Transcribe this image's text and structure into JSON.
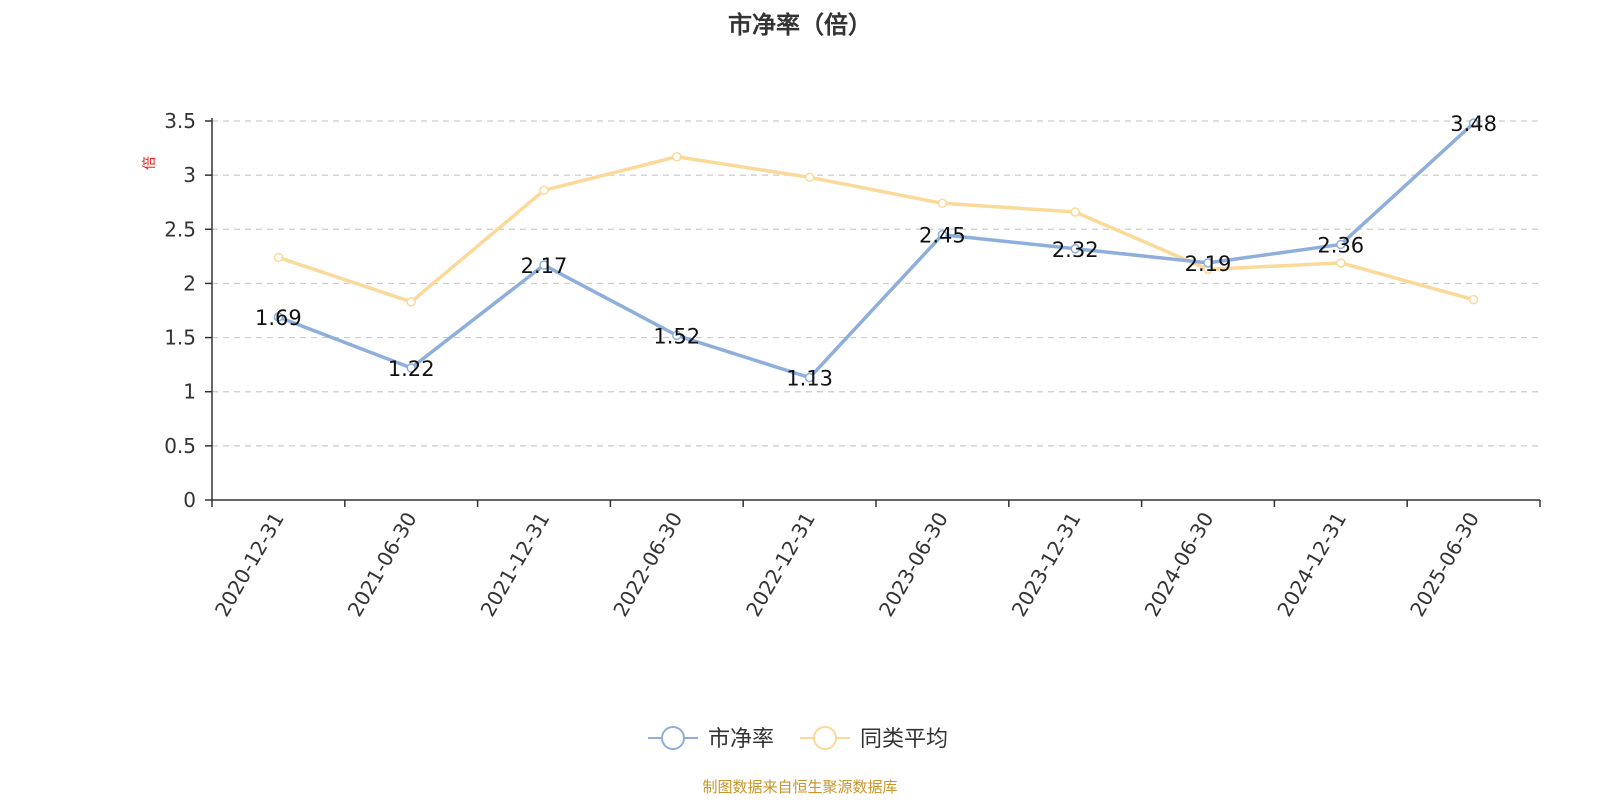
{
  "chart_data": {
    "type": "line",
    "title": "市净率（倍）",
    "ylabel": "倍",
    "xlabel": "",
    "categories": [
      "2020-12-31",
      "2021-06-30",
      "2021-12-31",
      "2022-06-30",
      "2022-12-31",
      "2023-06-30",
      "2023-12-31",
      "2024-06-30",
      "2024-12-31",
      "2025-06-30"
    ],
    "series": [
      {
        "name": "市净率",
        "color": "#8eaedb",
        "values": [
          1.69,
          1.22,
          2.17,
          1.52,
          1.13,
          2.45,
          2.32,
          2.19,
          2.36,
          3.48
        ],
        "data_labels": [
          "1.69",
          "1.22",
          "2.17",
          "1.52",
          "1.13",
          "2.45",
          "2.32",
          "2.19",
          "2.36",
          "3.48"
        ]
      },
      {
        "name": "同类平均",
        "color": "#fbd999",
        "values": [
          2.24,
          1.83,
          2.86,
          3.17,
          2.98,
          2.74,
          2.66,
          2.13,
          2.19,
          1.85
        ]
      }
    ],
    "ylim": [
      0,
      3.5
    ],
    "yticks": [
      "0",
      "0.5",
      "1",
      "1.5",
      "2",
      "2.5",
      "3",
      "3.5"
    ],
    "grid": true,
    "legend_position": "bottom-center"
  },
  "colors": {
    "unit_label": "#e8231e",
    "source": "#c8962a",
    "grid": "#cccccc",
    "axis": "#333333"
  },
  "source_text": "制图数据来自恒生聚源数据库"
}
